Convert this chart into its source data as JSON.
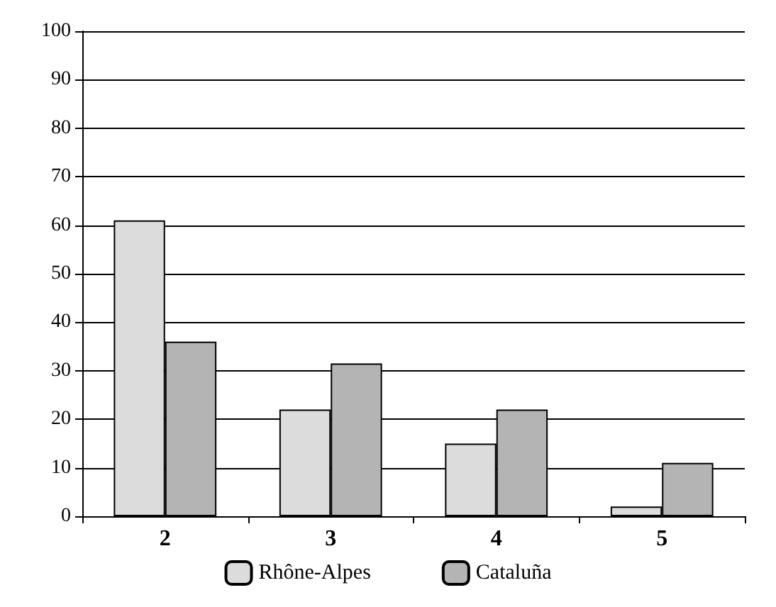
{
  "chart_data": {
    "type": "bar",
    "categories": [
      "2",
      "3",
      "4",
      "5"
    ],
    "series": [
      {
        "name": "Rhône-Alpes",
        "color": "#dcdcdc",
        "values": [
          61,
          22,
          15,
          2
        ]
      },
      {
        "name": "Cataluña",
        "color": "#b4b4b4",
        "values": [
          36,
          31.5,
          22,
          11
        ]
      }
    ],
    "ylim": [
      0,
      100
    ],
    "yticks": [
      0,
      10,
      20,
      30,
      40,
      50,
      60,
      70,
      80,
      90,
      100
    ],
    "grid": "y",
    "legend": "bottom"
  }
}
